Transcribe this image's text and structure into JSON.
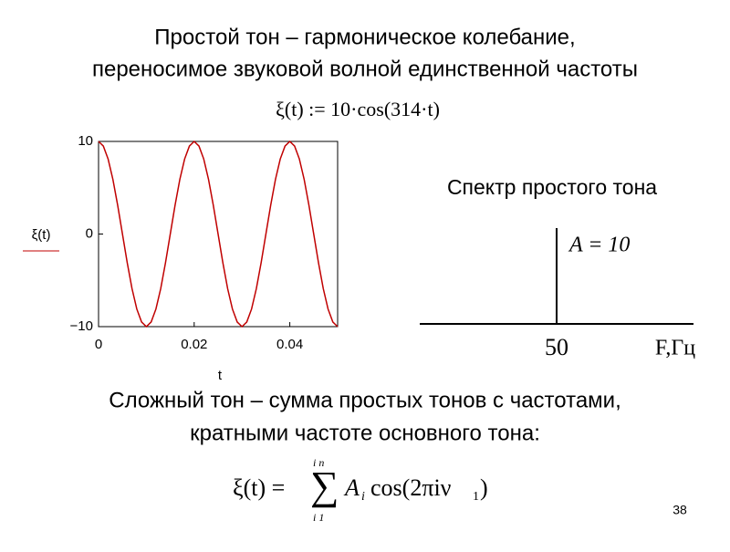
{
  "header": {
    "title_lines": [
      "Простой тон – гармоническое колебание,",
      "переносимое звуковой волной единственной частоты"
    ],
    "formula": "ξ(t) := 10·cos(314·t)"
  },
  "chart_data": [
    {
      "type": "line",
      "x_label": "t",
      "y_label": "ξ(t)",
      "color": "#c00000",
      "x": [
        0,
        0.001,
        0.002,
        0.003,
        0.004,
        0.005,
        0.006,
        0.007,
        0.008,
        0.009,
        0.01,
        0.011,
        0.012,
        0.013,
        0.014,
        0.015,
        0.016,
        0.017,
        0.018,
        0.019,
        0.02,
        0.021,
        0.022,
        0.023,
        0.024,
        0.025,
        0.026,
        0.027,
        0.028,
        0.029,
        0.03,
        0.031,
        0.032,
        0.033,
        0.034,
        0.035,
        0.036,
        0.037,
        0.038,
        0.039,
        0.04,
        0.041,
        0.042,
        0.043,
        0.044,
        0.045,
        0.046,
        0.047,
        0.048,
        0.049,
        0.05
      ],
      "values": [
        10,
        9.5,
        8.1,
        5.9,
        3.1,
        0,
        -3.1,
        -5.9,
        -8.1,
        -9.5,
        -10,
        -9.5,
        -8.1,
        -5.9,
        -3.1,
        0,
        3.1,
        5.9,
        8.1,
        9.5,
        10,
        9.5,
        8.1,
        5.9,
        3.1,
        0,
        -3.1,
        -5.9,
        -8.1,
        -9.5,
        -10,
        -9.5,
        -8.1,
        -5.9,
        -3.1,
        0,
        3.1,
        5.9,
        8.1,
        9.5,
        10,
        9.5,
        8.1,
        5.9,
        3.1,
        0,
        -3.1,
        -5.9,
        -8.1,
        -9.5,
        -10
      ],
      "xlim": [
        0,
        0.05
      ],
      "xticks": [
        0,
        0.02,
        0.04
      ],
      "ylim": [
        -10,
        10
      ],
      "yticks": [
        {
          "value": -10,
          "label": "−10"
        },
        0,
        10
      ]
    },
    {
      "type": "stem",
      "title": "Спектр простого тона",
      "x_label": "F,Гц",
      "color": "#000000",
      "x": [
        50
      ],
      "values": [
        10
      ],
      "value_labels": [
        "A = 10"
      ],
      "xlim": [
        0,
        100
      ],
      "xticks": [
        50
      ],
      "ylim": [
        0,
        10
      ]
    }
  ],
  "footer": {
    "text_lines": [
      "Сложный тон – сумма простых тонов с частотами,",
      "кратными частоте основного тона:"
    ],
    "formula": {
      "lhs": "ξ(t) =",
      "sum": "∑",
      "upper": "i  n",
      "lower": "i  1",
      "term": "A",
      "term_sub": "i",
      "func": "cos(2πiν",
      "func_sub": "1",
      "close": ")"
    },
    "page_number": "38"
  }
}
